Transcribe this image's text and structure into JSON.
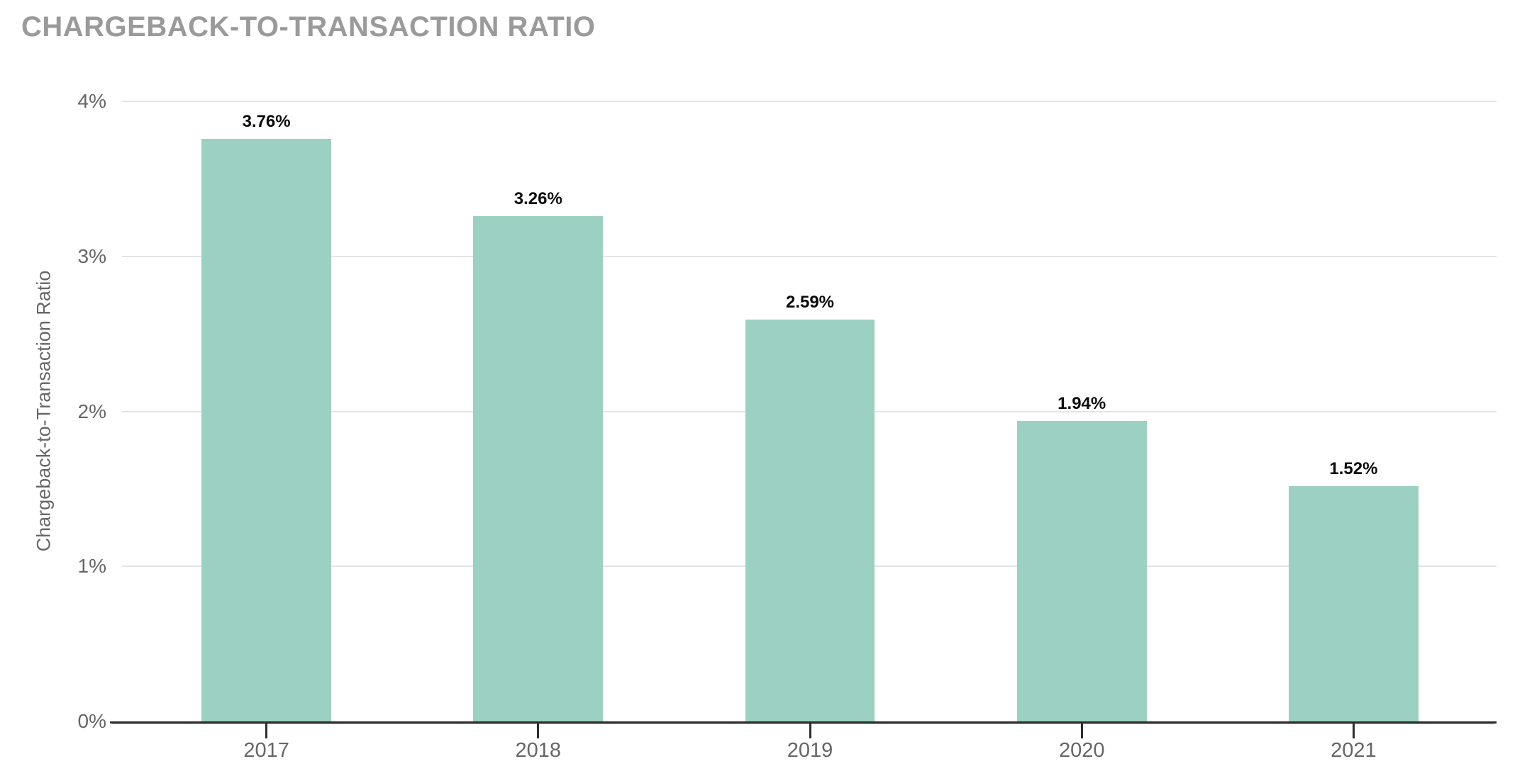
{
  "chart_data": {
    "type": "bar",
    "title": "CHARGEBACK-TO-TRANSACTION RATIO",
    "categories": [
      "2017",
      "2018",
      "2019",
      "2020",
      "2021"
    ],
    "values": [
      3.76,
      3.26,
      2.59,
      1.94,
      1.52
    ],
    "bar_labels": [
      "3.76%",
      "3.26%",
      "2.59%",
      "1.94%",
      "1.52%"
    ],
    "xlabel": "",
    "ylabel": "Chargeback-to-Transaction Ratio",
    "ylim": [
      0,
      4
    ],
    "yticks": [
      {
        "value": 0,
        "label": "0%"
      },
      {
        "value": 1,
        "label": "1%"
      },
      {
        "value": 2,
        "label": "2%"
      },
      {
        "value": 3,
        "label": "3%"
      },
      {
        "value": 4,
        "label": "4%"
      }
    ],
    "grid": "horizontal",
    "legend": "none",
    "colors": {
      "bar": "#9cd0c3",
      "title_text": "#9a9a9a",
      "axis_line": "#2e2e2e",
      "gridline": "#e4e4e4",
      "tick_text": "#666666",
      "value_label_text": "#0b0b0b",
      "background": "#ffffff"
    }
  }
}
